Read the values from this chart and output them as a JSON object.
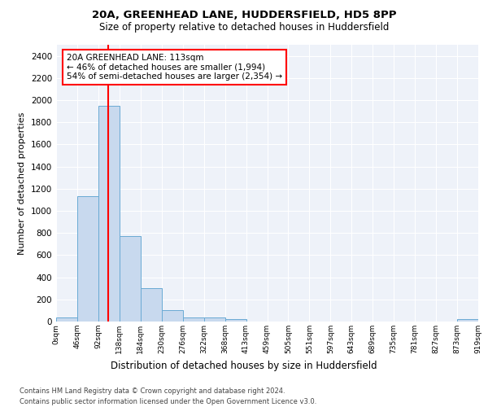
{
  "title1": "20A, GREENHEAD LANE, HUDDERSFIELD, HD5 8PP",
  "title2": "Size of property relative to detached houses in Huddersfield",
  "xlabel": "Distribution of detached houses by size in Huddersfield",
  "ylabel": "Number of detached properties",
  "bin_labels": [
    "0sqm",
    "46sqm",
    "92sqm",
    "138sqm",
    "184sqm",
    "230sqm",
    "276sqm",
    "322sqm",
    "368sqm",
    "413sqm",
    "459sqm",
    "505sqm",
    "551sqm",
    "597sqm",
    "643sqm",
    "689sqm",
    "735sqm",
    "781sqm",
    "827sqm",
    "873sqm",
    "919sqm"
  ],
  "bar_values": [
    40,
    1130,
    1950,
    775,
    300,
    100,
    40,
    35,
    20,
    0,
    0,
    0,
    0,
    0,
    0,
    0,
    0,
    0,
    0,
    20
  ],
  "bar_color": "#c8d9ee",
  "bar_edge_color": "#6aaad4",
  "annotation_text": "20A GREENHEAD LANE: 113sqm\n← 46% of detached houses are smaller (1,994)\n54% of semi-detached houses are larger (2,354) →",
  "ylim": [
    0,
    2500
  ],
  "yticks": [
    0,
    200,
    400,
    600,
    800,
    1000,
    1200,
    1400,
    1600,
    1800,
    2000,
    2200,
    2400
  ],
  "footer1": "Contains HM Land Registry data © Crown copyright and database right 2024.",
  "footer2": "Contains public sector information licensed under the Open Government Licence v3.0.",
  "background_color": "#eef2f9"
}
